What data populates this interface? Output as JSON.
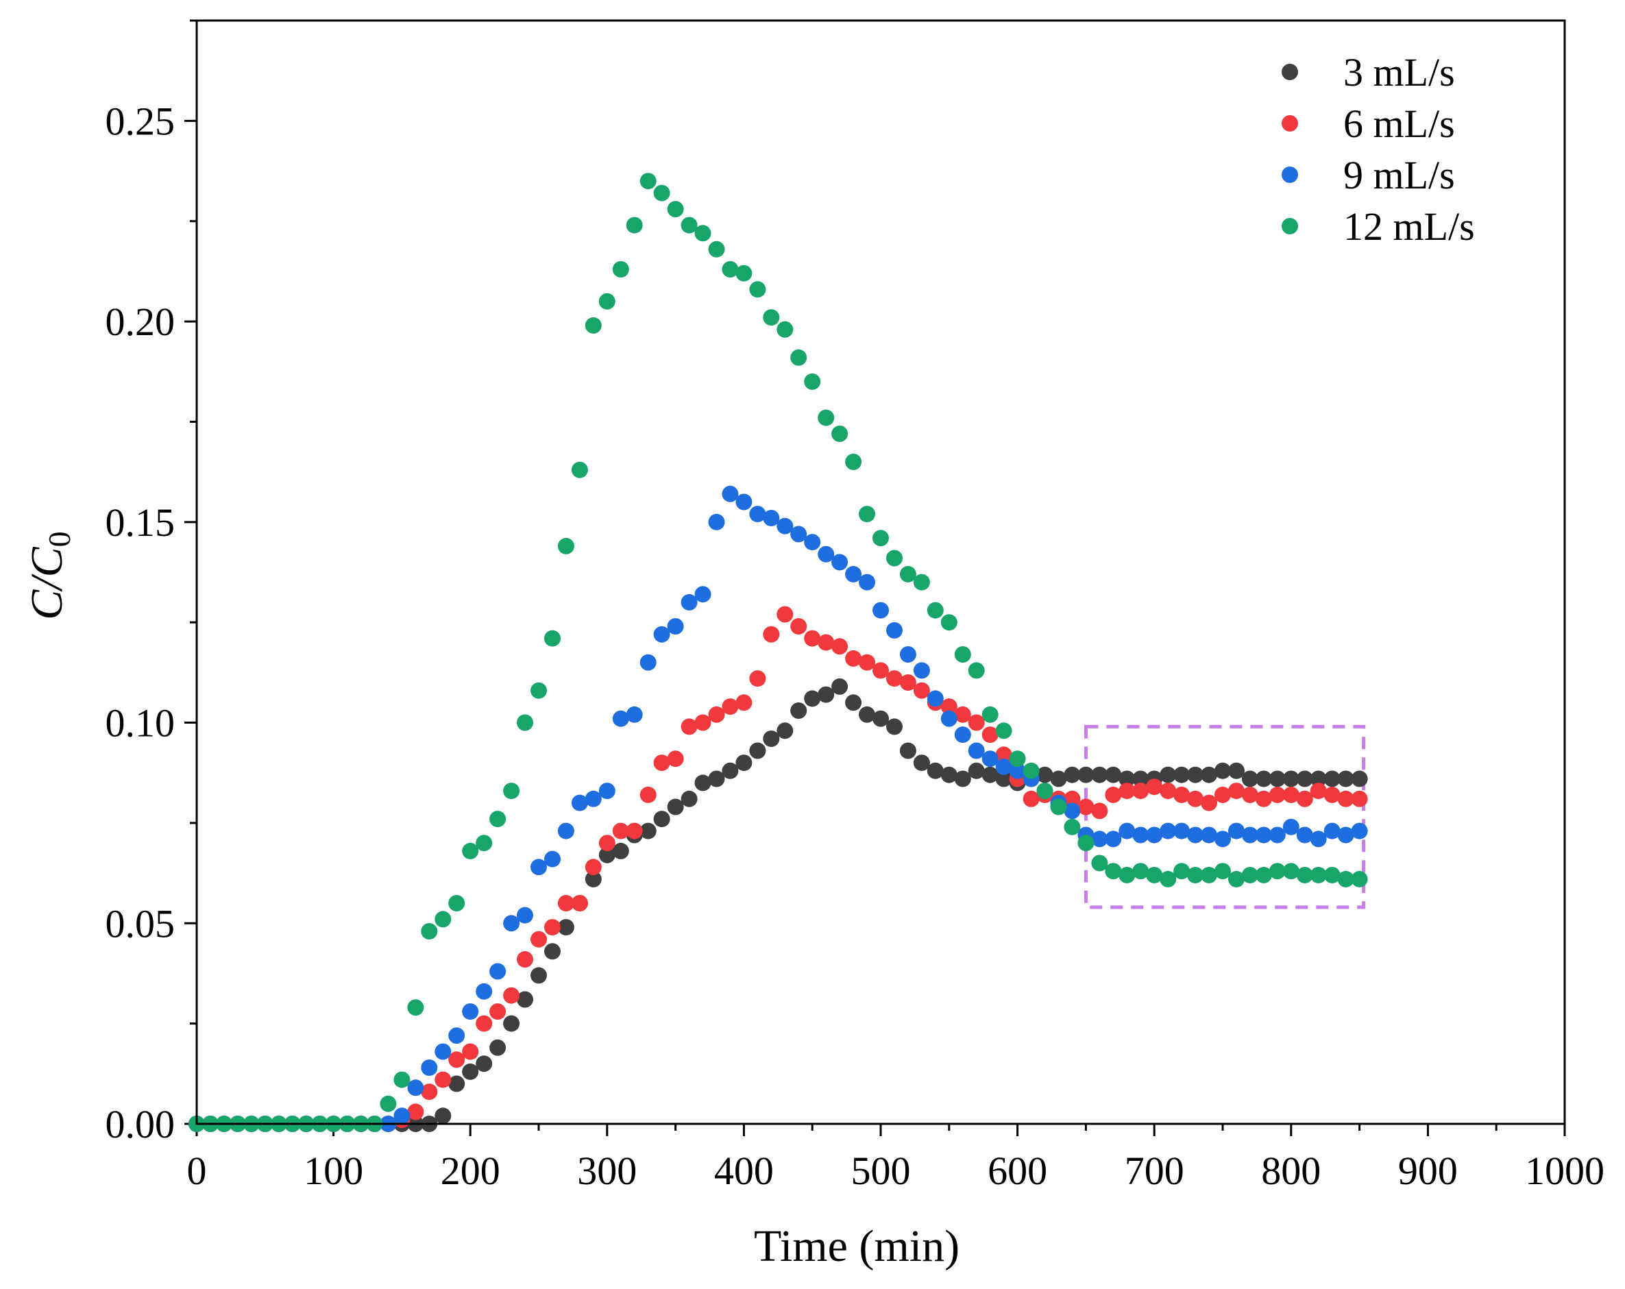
{
  "chart_data": {
    "type": "scatter",
    "title": "",
    "xlabel": "Time (min)",
    "ylabel_main": "C/C",
    "ylabel_sub": "0",
    "xlim": [
      0,
      1000
    ],
    "ylim": [
      0,
      0.275
    ],
    "x_ticks": [
      0,
      100,
      200,
      300,
      400,
      500,
      600,
      700,
      800,
      900,
      1000
    ],
    "x_tick_labels": [
      "0",
      "100",
      "200",
      "300",
      "400",
      "500",
      "600",
      "700",
      "800",
      "900",
      "1000"
    ],
    "y_ticks": [
      0,
      0.05,
      0.1,
      0.15,
      0.2,
      0.25
    ],
    "y_tick_labels": [
      "0.00",
      "0.05",
      "0.10",
      "0.15",
      "0.20",
      "0.25"
    ],
    "x_minor_step": 50,
    "y_minor_step": 0.025,
    "grid": false,
    "legend_position": "top-right",
    "highlight_box": {
      "x": [
        650,
        853
      ],
      "y": [
        0.054,
        0.099
      ],
      "style": "dashed",
      "color": "#c77dea"
    },
    "series": [
      {
        "name": "3 mL/s",
        "color": "#3f3f3f",
        "x": [
          0,
          10,
          20,
          30,
          40,
          50,
          60,
          70,
          80,
          90,
          100,
          110,
          120,
          130,
          140,
          150,
          160,
          170,
          180,
          190,
          200,
          210,
          220,
          230,
          240,
          250,
          260,
          270,
          280,
          290,
          300,
          310,
          320,
          330,
          340,
          350,
          360,
          370,
          380,
          390,
          400,
          410,
          420,
          430,
          440,
          450,
          460,
          470,
          480,
          490,
          500,
          510,
          520,
          530,
          540,
          550,
          560,
          570,
          580,
          590,
          600,
          610,
          620,
          630,
          640,
          650,
          660,
          670,
          680,
          690,
          700,
          710,
          720,
          730,
          740,
          750,
          760,
          770,
          780,
          790,
          800,
          810,
          820,
          830,
          840,
          850
        ],
        "y": [
          0,
          0,
          0,
          0,
          0,
          0,
          0,
          0,
          0,
          0,
          0,
          0,
          0,
          0,
          0,
          0,
          0,
          0,
          0.002,
          0.01,
          0.013,
          0.015,
          0.019,
          0.025,
          0.031,
          0.037,
          0.043,
          0.049,
          0.055,
          0.061,
          0.067,
          0.068,
          0.072,
          0.073,
          0.076,
          0.079,
          0.081,
          0.085,
          0.086,
          0.088,
          0.09,
          0.093,
          0.096,
          0.098,
          0.103,
          0.106,
          0.107,
          0.109,
          0.105,
          0.102,
          0.101,
          0.099,
          0.093,
          0.09,
          0.088,
          0.087,
          0.086,
          0.088,
          0.087,
          0.086,
          0.085,
          0.086,
          0.087,
          0.086,
          0.087,
          0.087,
          0.087,
          0.087,
          0.086,
          0.086,
          0.086,
          0.087,
          0.087,
          0.087,
          0.087,
          0.088,
          0.088,
          0.086,
          0.086,
          0.086,
          0.086,
          0.086,
          0.086,
          0.086,
          0.086,
          0.086
        ]
      },
      {
        "name": "6 mL/s",
        "color": "#f0383d",
        "x": [
          0,
          10,
          20,
          30,
          40,
          50,
          60,
          70,
          80,
          90,
          100,
          110,
          120,
          130,
          140,
          150,
          160,
          170,
          180,
          190,
          200,
          210,
          220,
          230,
          240,
          250,
          260,
          270,
          280,
          290,
          300,
          310,
          320,
          330,
          340,
          350,
          360,
          370,
          380,
          390,
          400,
          410,
          420,
          430,
          440,
          450,
          460,
          470,
          480,
          490,
          500,
          510,
          520,
          530,
          540,
          550,
          560,
          570,
          580,
          590,
          600,
          610,
          620,
          630,
          640,
          650,
          660,
          670,
          680,
          690,
          700,
          710,
          720,
          730,
          740,
          750,
          760,
          770,
          780,
          790,
          800,
          810,
          820,
          830,
          840,
          850
        ],
        "y": [
          0,
          0,
          0,
          0,
          0,
          0,
          0,
          0,
          0,
          0,
          0,
          0,
          0,
          0,
          0,
          0.001,
          0.003,
          0.008,
          0.011,
          0.016,
          0.018,
          0.025,
          0.028,
          0.032,
          0.041,
          0.046,
          0.049,
          0.055,
          0.055,
          0.064,
          0.07,
          0.073,
          0.073,
          0.082,
          0.09,
          0.091,
          0.099,
          0.1,
          0.102,
          0.104,
          0.105,
          0.111,
          0.122,
          0.127,
          0.124,
          0.121,
          0.12,
          0.119,
          0.116,
          0.115,
          0.113,
          0.111,
          0.11,
          0.108,
          0.105,
          0.104,
          0.102,
          0.1,
          0.097,
          0.092,
          0.086,
          0.081,
          0.082,
          0.081,
          0.081,
          0.079,
          0.078,
          0.082,
          0.083,
          0.083,
          0.084,
          0.083,
          0.082,
          0.081,
          0.08,
          0.082,
          0.083,
          0.082,
          0.081,
          0.082,
          0.082,
          0.081,
          0.083,
          0.082,
          0.081,
          0.081
        ]
      },
      {
        "name": "9 mL/s",
        "color": "#1f6ee0",
        "x": [
          0,
          10,
          20,
          30,
          40,
          50,
          60,
          70,
          80,
          90,
          100,
          110,
          120,
          130,
          140,
          150,
          160,
          170,
          180,
          190,
          200,
          210,
          220,
          230,
          240,
          250,
          260,
          270,
          280,
          290,
          300,
          310,
          320,
          330,
          340,
          350,
          360,
          370,
          380,
          390,
          400,
          410,
          420,
          430,
          440,
          450,
          460,
          470,
          480,
          490,
          500,
          510,
          520,
          530,
          540,
          550,
          560,
          570,
          580,
          590,
          600,
          610,
          620,
          630,
          640,
          650,
          660,
          670,
          680,
          690,
          700,
          710,
          720,
          730,
          740,
          750,
          760,
          770,
          780,
          790,
          800,
          810,
          820,
          830,
          840,
          850
        ],
        "y": [
          0,
          0,
          0,
          0,
          0,
          0,
          0,
          0,
          0,
          0,
          0,
          0,
          0,
          0,
          0,
          0.002,
          0.009,
          0.014,
          0.018,
          0.022,
          0.028,
          0.033,
          0.038,
          0.05,
          0.052,
          0.064,
          0.066,
          0.073,
          0.08,
          0.081,
          0.083,
          0.101,
          0.102,
          0.115,
          0.122,
          0.124,
          0.13,
          0.132,
          0.15,
          0.157,
          0.155,
          0.152,
          0.151,
          0.149,
          0.147,
          0.145,
          0.142,
          0.14,
          0.137,
          0.135,
          0.128,
          0.123,
          0.117,
          0.113,
          0.106,
          0.101,
          0.097,
          0.093,
          0.091,
          0.089,
          0.088,
          0.086,
          0.083,
          0.08,
          0.078,
          0.072,
          0.071,
          0.071,
          0.073,
          0.072,
          0.072,
          0.073,
          0.073,
          0.072,
          0.072,
          0.071,
          0.073,
          0.072,
          0.072,
          0.072,
          0.074,
          0.072,
          0.071,
          0.073,
          0.072,
          0.073
        ]
      },
      {
        "name": "12 mL/s",
        "color": "#17a56a",
        "x": [
          0,
          10,
          20,
          30,
          40,
          50,
          60,
          70,
          80,
          90,
          100,
          110,
          120,
          130,
          140,
          150,
          160,
          170,
          180,
          190,
          200,
          210,
          220,
          230,
          240,
          250,
          260,
          270,
          280,
          290,
          300,
          310,
          320,
          330,
          340,
          350,
          360,
          370,
          380,
          390,
          400,
          410,
          420,
          430,
          440,
          450,
          460,
          470,
          480,
          490,
          500,
          510,
          520,
          530,
          540,
          550,
          560,
          570,
          580,
          590,
          600,
          610,
          620,
          630,
          640,
          650,
          660,
          670,
          680,
          690,
          700,
          710,
          720,
          730,
          740,
          750,
          760,
          770,
          780,
          790,
          800,
          810,
          820,
          830,
          840,
          850
        ],
        "y": [
          0,
          0,
          0,
          0,
          0,
          0,
          0,
          0,
          0,
          0,
          0,
          0,
          0,
          0,
          0.005,
          0.011,
          0.029,
          0.048,
          0.051,
          0.055,
          0.068,
          0.07,
          0.076,
          0.083,
          0.1,
          0.108,
          0.121,
          0.144,
          0.163,
          0.199,
          0.205,
          0.213,
          0.224,
          0.235,
          0.232,
          0.228,
          0.224,
          0.222,
          0.218,
          0.213,
          0.212,
          0.208,
          0.201,
          0.198,
          0.191,
          0.185,
          0.176,
          0.172,
          0.165,
          0.152,
          0.146,
          0.141,
          0.137,
          0.135,
          0.128,
          0.125,
          0.117,
          0.113,
          0.102,
          0.098,
          0.091,
          0.088,
          0.083,
          0.079,
          0.074,
          0.07,
          0.065,
          0.063,
          0.062,
          0.063,
          0.062,
          0.061,
          0.063,
          0.062,
          0.062,
          0.063,
          0.061,
          0.062,
          0.062,
          0.063,
          0.063,
          0.062,
          0.062,
          0.062,
          0.061,
          0.061
        ]
      }
    ]
  }
}
